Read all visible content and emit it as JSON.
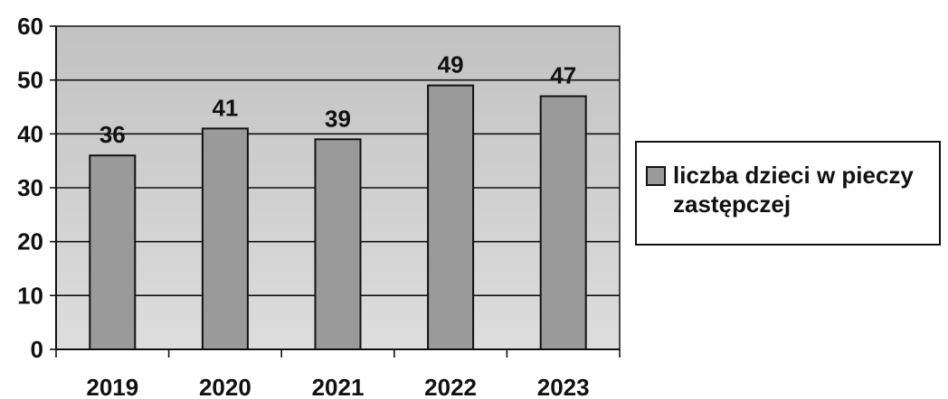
{
  "chart_data": {
    "type": "bar",
    "categories": [
      "2019",
      "2020",
      "2021",
      "2022",
      "2023"
    ],
    "series": [
      {
        "name": "liczba dzieci w pieczy zastępczej",
        "values": [
          36,
          41,
          39,
          49,
          47
        ]
      }
    ],
    "data_labels": [
      "36",
      "41",
      "39",
      "49",
      "47"
    ],
    "title": "",
    "xlabel": "",
    "ylabel": "",
    "ylim": [
      0,
      60
    ],
    "yticks": [
      "0",
      "10",
      "20",
      "30",
      "40",
      "50",
      "60"
    ],
    "grid": true,
    "legend_position": "right",
    "colors": {
      "bar": "#9a9a9a",
      "plot_background": "#cfcfcf",
      "grid": "#111111"
    }
  }
}
